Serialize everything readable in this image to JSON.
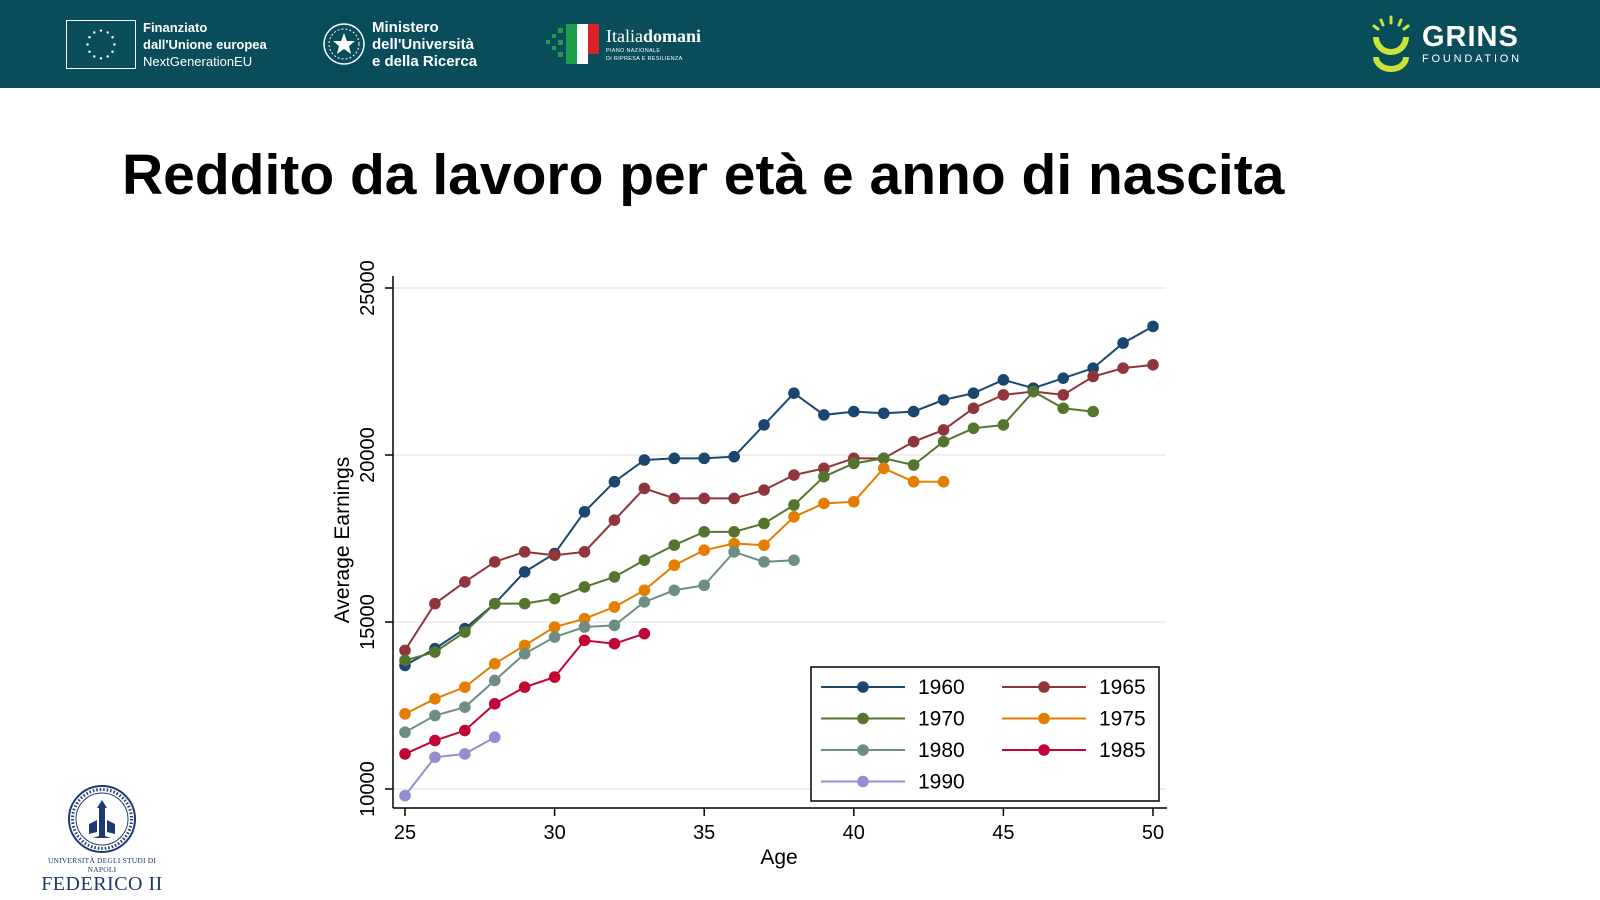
{
  "header": {
    "eu": {
      "line1": "Finanziato",
      "line2": "dall'Unione europea",
      "line3": "NextGenerationEU"
    },
    "ministry": {
      "line1": "Ministero",
      "line2": "dell'Università",
      "line3": "e della Ricerca"
    },
    "italia_domani": {
      "title_a": "Italia",
      "title_b": "domani",
      "sub1": "PIANO NAZIONALE",
      "sub2": "DI RIPRESA E RESILIENZA"
    },
    "grins": {
      "name": "GRINS",
      "sub": "FOUNDATION"
    }
  },
  "title": "Reddito da lavoro per età e anno di nascita",
  "footer_logo": {
    "line1": "UNIVERSITÀ DEGLI STUDI DI NAPOLI",
    "line2": "FEDERICO II"
  },
  "chart_data": {
    "type": "line",
    "xlabel": "Age",
    "ylabel": "Average Earnings",
    "xlim": [
      25,
      50
    ],
    "ylim": [
      10000,
      25000
    ],
    "xticks": [
      "25",
      "30",
      "35",
      "40",
      "45",
      "50"
    ],
    "yticks": [
      "10000",
      "15000",
      "20000",
      "25000"
    ],
    "legend_position": "bottom-right",
    "series": [
      {
        "name": "1960",
        "color": "#1a476f",
        "x": [
          25,
          26,
          27,
          28,
          29,
          30,
          31,
          32,
          33,
          34,
          35,
          36,
          37,
          38,
          39,
          40,
          41,
          42,
          43,
          44,
          45,
          46,
          47,
          48,
          49,
          50
        ],
        "values": [
          13700,
          14200,
          14800,
          15550,
          16500,
          17050,
          18300,
          19200,
          19850,
          19900,
          19900,
          19950,
          20900,
          21850,
          21200,
          21300,
          21250,
          21300,
          21650,
          21850,
          22250,
          22000,
          22300,
          22600,
          23350,
          23850
        ]
      },
      {
        "name": "1965",
        "color": "#90353b",
        "x": [
          25,
          26,
          27,
          28,
          29,
          30,
          31,
          32,
          33,
          34,
          35,
          36,
          37,
          38,
          39,
          40,
          41,
          42,
          43,
          44,
          45,
          46,
          47,
          48,
          49,
          50
        ],
        "values": [
          14150,
          15550,
          16200,
          16800,
          17100,
          17000,
          17100,
          18050,
          19000,
          18700,
          18700,
          18700,
          18950,
          19400,
          19600,
          19900,
          19900,
          20400,
          20750,
          21400,
          21800,
          21900,
          21800,
          22350,
          22600,
          22700
        ]
      },
      {
        "name": "1970",
        "color": "#55752f",
        "x": [
          25,
          26,
          27,
          28,
          29,
          30,
          31,
          32,
          33,
          34,
          35,
          36,
          37,
          38,
          39,
          40,
          41,
          42,
          43,
          44,
          45,
          46,
          47,
          48
        ],
        "values": [
          13850,
          14100,
          14700,
          15550,
          15550,
          15700,
          16050,
          16350,
          16850,
          17300,
          17700,
          17700,
          17950,
          18500,
          19350,
          19750,
          19900,
          19700,
          20400,
          20800,
          20900,
          21900,
          21400,
          21300
        ]
      },
      {
        "name": "1975",
        "color": "#e37e00",
        "x": [
          25,
          26,
          27,
          28,
          29,
          30,
          31,
          32,
          33,
          34,
          35,
          36,
          37,
          38,
          39,
          40,
          41,
          42,
          43
        ],
        "values": [
          12250,
          12700,
          13050,
          13750,
          14300,
          14850,
          15100,
          15450,
          15950,
          16700,
          17150,
          17350,
          17300,
          18150,
          18550,
          18600,
          19600,
          19200,
          19200
        ]
      },
      {
        "name": "1980",
        "color": "#6e8e84",
        "x": [
          25,
          26,
          27,
          28,
          29,
          30,
          31,
          32,
          33,
          34,
          35,
          36,
          37,
          38
        ],
        "values": [
          11700,
          12200,
          12450,
          13250,
          14050,
          14550,
          14850,
          14900,
          15600,
          15950,
          16100,
          17100,
          16800,
          16850
        ]
      },
      {
        "name": "1985",
        "color": "#c10534",
        "x": [
          25,
          26,
          27,
          28,
          29,
          30,
          31,
          32,
          33
        ],
        "values": [
          11050,
          11450,
          11750,
          12550,
          13050,
          13350,
          14450,
          14350,
          14650
        ]
      },
      {
        "name": "1990",
        "color": "#938dd2",
        "x": [
          25,
          26,
          27,
          28
        ],
        "values": [
          9800,
          10950,
          11050,
          11550
        ]
      }
    ]
  }
}
